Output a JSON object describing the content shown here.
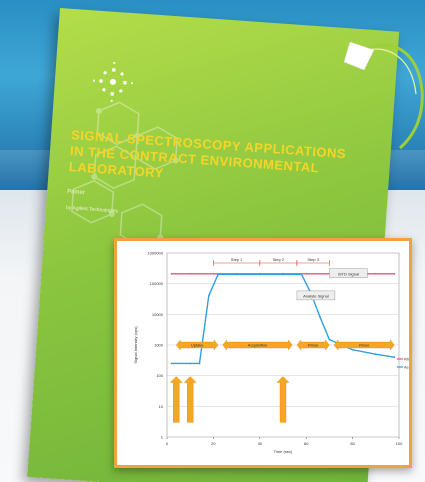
{
  "cover": {
    "title_line1": "SIGNAL SPECTROSCOPY APPLICATIONS",
    "title_line2": "IN THE CONTRACT ENVIRONMENTAL",
    "title_line3": "LABORATORY",
    "subtitle1": "Primer",
    "subtitle2": "by Agilent Technologies",
    "colors": {
      "cover": "#8cc63f",
      "title": "#f5d52a",
      "frame": "#f2a23a"
    }
  },
  "chart_data": {
    "type": "line",
    "xlabel": "Time (sec)",
    "ylabel": "Signal Intensity (cps)",
    "xlim": [
      0,
      100
    ],
    "x_ticks": [
      "0",
      "20",
      "40",
      "60",
      "80",
      "100"
    ],
    "y_ticks": [
      "1",
      "10",
      "100",
      "1000",
      "10000",
      "100000",
      "1000000"
    ],
    "series": [
      {
        "name": "Rh (103)",
        "color": "#e8537a",
        "x": [
          2,
          10,
          20,
          30,
          40,
          50,
          60,
          70,
          80,
          90,
          98
        ],
        "y": [
          210000,
          210000,
          210000,
          210000,
          210000,
          210000,
          210000,
          210000,
          210000,
          210000,
          210000
        ]
      },
      {
        "name": "As (75)",
        "color": "#2f9fe0",
        "x": [
          2,
          10,
          14,
          18,
          22,
          30,
          40,
          50,
          58,
          62,
          66,
          70,
          80,
          90,
          98
        ],
        "y": [
          250,
          250,
          250,
          40000,
          200000,
          200000,
          200000,
          200000,
          200000,
          50000,
          8000,
          1500,
          700,
          500,
          400
        ]
      }
    ],
    "annotations": {
      "steps": [
        "Step 1",
        "Step 2",
        "Step 3"
      ],
      "ref_label": "ISTD Signal",
      "analyte_label": "Analyte Signal",
      "phases": [
        "Uptake",
        "Acquisition",
        "Rinse",
        "Rinse"
      ]
    }
  }
}
